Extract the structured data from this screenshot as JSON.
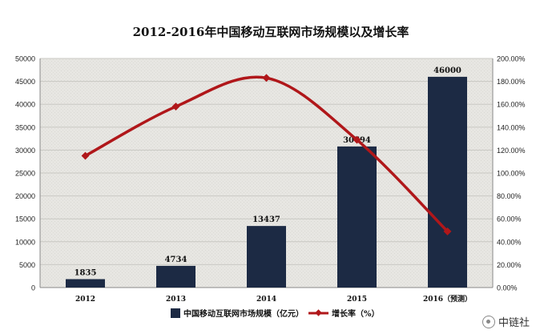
{
  "chart_data": {
    "type": "bar",
    "title": "2012-2016年中国移动互联网市场规模以及增长率",
    "categories": [
      "2012",
      "2013",
      "2014",
      "2015",
      "2016（预测）"
    ],
    "series": [
      {
        "name": "中国移动互联网市场规模（亿元）",
        "type": "bar",
        "axis": "left",
        "values": [
          1835,
          4734,
          13437,
          30794,
          46000
        ],
        "color": "#1c2a44"
      },
      {
        "name": "增长率（%）",
        "type": "line",
        "axis": "right",
        "values": [
          115,
          158,
          183,
          129,
          49
        ],
        "color": "#b0171a"
      }
    ],
    "data_labels": [
      "1835",
      "4734",
      "13437",
      "30794",
      "46000"
    ],
    "ylim": [
      0,
      50000
    ],
    "yticks": [
      "0",
      "5000",
      "10000",
      "15000",
      "20000",
      "25000",
      "30000",
      "35000",
      "40000",
      "45000",
      "50000"
    ],
    "y2lim": [
      0,
      200
    ],
    "y2ticks": [
      "0.00%",
      "20.00%",
      "40.00%",
      "60.00%",
      "80.00%",
      "100.00%",
      "120.00%",
      "140.00%",
      "160.00%",
      "180.00%",
      "200.00%"
    ],
    "grid": true,
    "legend": "bottom"
  },
  "watermark": {
    "text": "中链社",
    "icon": "chain-logo-icon"
  }
}
